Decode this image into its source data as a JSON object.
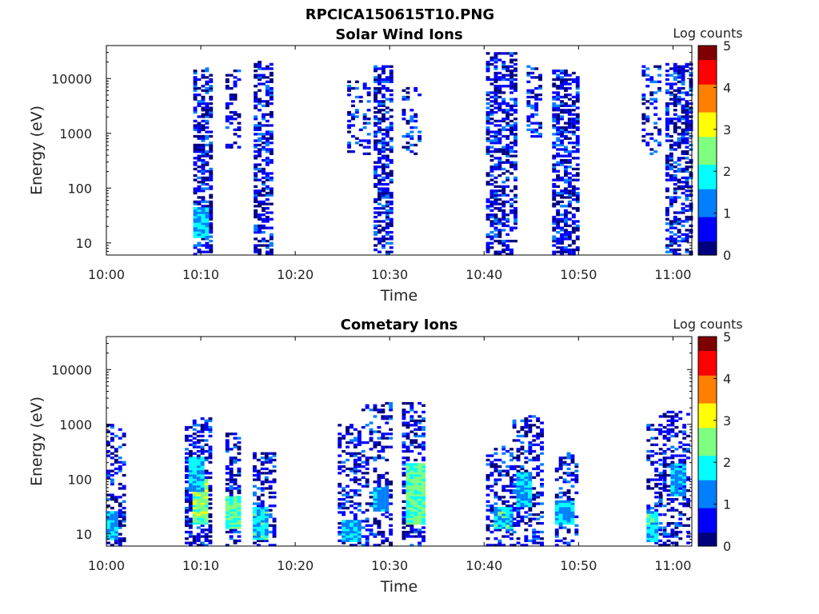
{
  "figure": {
    "title": "RPCICA150615T10.PNG"
  },
  "colormap": [
    "#00007f",
    "#0000ff",
    "#007fff",
    "#00ffff",
    "#7fff7f",
    "#ffff00",
    "#ff7f00",
    "#ff0000",
    "#7f0000"
  ],
  "chart_data": [
    {
      "type": "heatmap",
      "title": "Solar Wind Ions",
      "xlabel": "Time",
      "ylabel": "Energy (eV)",
      "colorbar_label": "Log counts",
      "x_range": [
        "10:00",
        "11:02"
      ],
      "x_ticks": [
        "10:00",
        "10:10",
        "10:20",
        "10:30",
        "10:40",
        "10:50",
        "11:00"
      ],
      "y_scale": "log",
      "y_range": [
        6,
        40000
      ],
      "y_ticks": [
        10,
        100,
        1000,
        10000
      ],
      "y_tick_labels": [
        "10",
        "100",
        "1000",
        "10000"
      ],
      "c_range": [
        0,
        5
      ],
      "c_ticks": [
        "0",
        "1",
        "2",
        "3",
        "4",
        "5"
      ],
      "bursts": [
        {
          "t": [
            10.5,
            1.5
          ],
          "e": [
            300,
            15000
          ],
          "density": 0.35,
          "hot": []
        },
        {
          "t": [
            9.2,
            10.9
          ],
          "e": [
            6,
            16000
          ],
          "density": 0.55,
          "hot": [
            {
              "t": 9.6,
              "e": [
                12,
                45
              ],
              "level": 1.6
            }
          ]
        },
        {
          "t": [
            12.6,
            14.2
          ],
          "e": [
            500,
            15000
          ],
          "density": 0.3,
          "hot": []
        },
        {
          "t": [
            15.6,
            17.4
          ],
          "e": [
            6,
            22000
          ],
          "density": 0.55,
          "hot": []
        },
        {
          "t": [
            25.5,
            27.6
          ],
          "e": [
            400,
            10000
          ],
          "density": 0.3,
          "hot": []
        },
        {
          "t": [
            28.3,
            30.3
          ],
          "e": [
            6,
            18000
          ],
          "density": 0.55,
          "hot": []
        },
        {
          "t": [
            31.3,
            33.2
          ],
          "e": [
            400,
            7000
          ],
          "density": 0.3,
          "hot": []
        },
        {
          "t": [
            40.2,
            43.5
          ],
          "e": [
            6,
            30000
          ],
          "density": 0.5,
          "hot": []
        },
        {
          "t": [
            44.5,
            46.0
          ],
          "e": [
            800,
            18000
          ],
          "density": 0.35,
          "hot": []
        },
        {
          "t": [
            47.2,
            49.7
          ],
          "e": [
            6,
            15000
          ],
          "density": 0.55,
          "hot": []
        },
        {
          "t": [
            56.7,
            58.6
          ],
          "e": [
            400,
            18000
          ],
          "density": 0.3,
          "hot": []
        },
        {
          "t": [
            59.2,
            61.7
          ],
          "e": [
            6,
            20000
          ],
          "density": 0.55,
          "hot": []
        }
      ]
    },
    {
      "type": "heatmap",
      "title": "Cometary Ions",
      "xlabel": "Time",
      "ylabel": "Energy (eV)",
      "colorbar_label": "Log counts",
      "x_range": [
        "10:00",
        "11:02"
      ],
      "x_ticks": [
        "10:00",
        "10:10",
        "10:20",
        "10:30",
        "10:40",
        "10:50",
        "11:00"
      ],
      "y_scale": "log",
      "y_range": [
        6,
        40000
      ],
      "y_ticks": [
        10,
        100,
        1000,
        10000
      ],
      "y_tick_labels": [
        "10",
        "100",
        "1000",
        "10000"
      ],
      "c_range": [
        0,
        5
      ],
      "c_ticks": [
        "0",
        "1",
        "2",
        "3",
        "4",
        "5"
      ],
      "bursts": [
        {
          "t": [
            0.0,
            1.8
          ],
          "e": [
            6,
            1000
          ],
          "density": 0.35,
          "hot": [
            {
              "t": 0.1,
              "e": [
                8,
                25
              ],
              "level": 1.6
            }
          ]
        },
        {
          "t": [
            8.3,
            10.8
          ],
          "e": [
            6,
            1300
          ],
          "density": 0.5,
          "hot": [
            {
              "t": 9.7,
              "e": [
                15,
                100
              ],
              "level": 2.5
            },
            {
              "t": 9.3,
              "e": [
                60,
                250
              ],
              "level": 1.6
            }
          ]
        },
        {
          "t": [
            12.6,
            14.2
          ],
          "e": [
            6,
            700
          ],
          "density": 0.45,
          "hot": [
            {
              "t": 13.3,
              "e": [
                12,
                50
              ],
              "level": 2.2
            }
          ]
        },
        {
          "t": [
            15.5,
            17.8
          ],
          "e": [
            6,
            300
          ],
          "density": 0.4,
          "hot": [
            {
              "t": 16.0,
              "e": [
                8,
                30
              ],
              "level": 1.8
            }
          ]
        },
        {
          "t": [
            24.5,
            27.0
          ],
          "e": [
            6,
            1000
          ],
          "density": 0.35,
          "hot": [
            {
              "t": 25.8,
              "e": [
                7,
                18
              ],
              "level": 1.5
            }
          ]
        },
        {
          "t": [
            27.0,
            30.2
          ],
          "e": [
            6,
            2500
          ],
          "density": 0.3,
          "hot": [
            {
              "t": 28.9,
              "e": [
                25,
                70
              ],
              "level": 1.4
            }
          ]
        },
        {
          "t": [
            31.3,
            33.5
          ],
          "e": [
            6,
            2500
          ],
          "density": 0.5,
          "hot": [
            {
              "t": 32.5,
              "e": [
                15,
                200
              ],
              "level": 2.3
            }
          ]
        },
        {
          "t": [
            40.2,
            43.0
          ],
          "e": [
            6,
            400
          ],
          "density": 0.4,
          "hot": [
            {
              "t": 41.8,
              "e": [
                12,
                30
              ],
              "level": 1.8
            }
          ]
        },
        {
          "t": [
            43.0,
            46.2
          ],
          "e": [
            6,
            1500
          ],
          "density": 0.4,
          "hot": [
            {
              "t": 44.0,
              "e": [
                30,
                130
              ],
              "level": 1.6
            }
          ]
        },
        {
          "t": [
            47.5,
            49.8
          ],
          "e": [
            6,
            300
          ],
          "density": 0.35,
          "hot": [
            {
              "t": 48.3,
              "e": [
                15,
                40
              ],
              "level": 1.5
            }
          ]
        },
        {
          "t": [
            57.2,
            58.5
          ],
          "e": [
            6,
            1000
          ],
          "density": 0.35,
          "hot": [
            {
              "t": 57.5,
              "e": [
                7,
                25
              ],
              "level": 1.8
            }
          ]
        },
        {
          "t": [
            58.5,
            61.8
          ],
          "e": [
            6,
            1800
          ],
          "density": 0.4,
          "hot": [
            {
              "t": 60.5,
              "e": [
                50,
                200
              ],
              "level": 1.4
            }
          ]
        }
      ]
    }
  ]
}
